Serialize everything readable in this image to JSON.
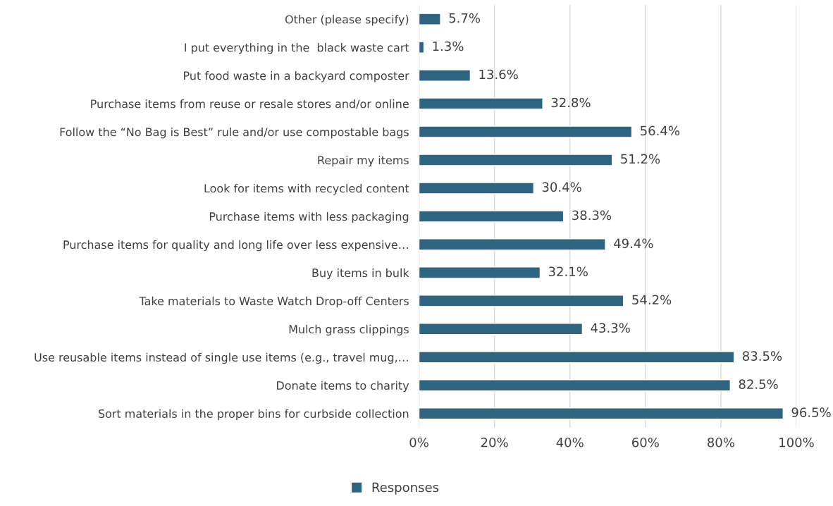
{
  "chart_data": {
    "type": "bar",
    "orientation": "horizontal",
    "categories": [
      "Other (please specify)",
      "I put everything in the  black waste cart",
      "Put food waste in a backyard composter",
      "Purchase items from reuse or resale stores and/or online",
      "Follow the “No Bag is Best” rule and/or use compostable bags",
      "Repair my items",
      "Look for items with recycled content",
      "Purchase items with less packaging",
      "Purchase items for quality and long life over less expensive…",
      "Buy items in bulk",
      "Take materials to Waste Watch Drop-off Centers",
      "Mulch grass clippings",
      "Use reusable items instead of single use items (e.g., travel mug,…",
      "Donate items to charity",
      "Sort materials in the proper bins for curbside collection"
    ],
    "series": [
      {
        "name": "Responses",
        "color": "#2e6480",
        "values": [
          5.7,
          1.3,
          13.6,
          32.8,
          56.4,
          51.2,
          30.4,
          38.3,
          49.4,
          32.1,
          54.2,
          43.3,
          83.5,
          82.5,
          96.5
        ],
        "value_labels": [
          "5.7%",
          "1.3%",
          "13.6%",
          "32.8%",
          "56.4%",
          "51.2%",
          "30.4%",
          "38.3%",
          "49.4%",
          "32.1%",
          "54.2%",
          "43.3%",
          "83.5%",
          "82.5%",
          "96.5%"
        ]
      }
    ],
    "xlim": [
      0,
      100
    ],
    "xticks": [
      {
        "value": 0,
        "label": "0%"
      },
      {
        "value": 20,
        "label": "20%"
      },
      {
        "value": 40,
        "label": "40%"
      },
      {
        "value": 60,
        "label": "60%"
      },
      {
        "value": 80,
        "label": "80%"
      },
      {
        "value": 100,
        "label": "100%"
      }
    ],
    "grid": "x",
    "legend": "bottom"
  }
}
